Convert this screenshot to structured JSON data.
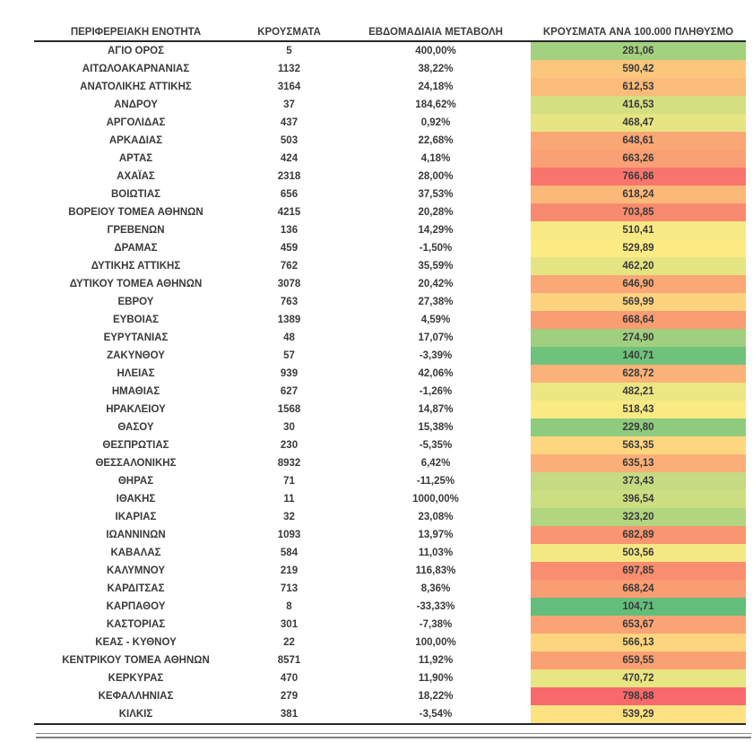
{
  "chart_data": {
    "type": "table",
    "columns": [
      "ΠΕΡΙΦΕΡΕΙΑΚΗ ΕΝΟΤΗΤΑ",
      "ΚΡΟΥΣΜΑΤΑ",
      "ΕΒΔΟΜΑΔΙΑΙΑ ΜΕΤΑΒΟΛΗ",
      "ΚΡΟΥΣΜΑΤΑ ΑΝΑ 100.000 ΠΛΗΘΥΣΜΟ"
    ],
    "color_scale": {
      "low": "#63BE7B",
      "mid": "#FFEB84",
      "high": "#F8696B",
      "applies_to_column": "ΚΡΟΥΣΜΑΤΑ ΑΝΑ 100.000 ΠΛΗΘΥΣΜΟ"
    },
    "rows": [
      {
        "region": "ΑΓΙΟ ΟΡΟΣ",
        "cases": "5",
        "weekly_change": "400,00%",
        "per_100k": "281,06",
        "color": "#A3D17F"
      },
      {
        "region": "ΑΙΤΩΛΟΑΚΑΡΝΑΝΙΑΣ",
        "cases": "1132",
        "weekly_change": "38,22%",
        "per_100k": "590,42",
        "color": "#FCC77C"
      },
      {
        "region": "ΑΝΑΤΟΛΙΚΗΣ ΑΤΤΙΚΗΣ",
        "cases": "3164",
        "weekly_change": "24,18%",
        "per_100k": "612,53",
        "color": "#FBBB7A"
      },
      {
        "region": "ΑΝΔΡΟΥ",
        "cases": "37",
        "weekly_change": "184,62%",
        "per_100k": "416,53",
        "color": "#D4DF82"
      },
      {
        "region": "ΑΡΓΟΛΙΔΑΣ",
        "cases": "437",
        "weekly_change": "0,92%",
        "per_100k": "468,47",
        "color": "#E7E483"
      },
      {
        "region": "ΑΡΚΑΔΙΑΣ",
        "cases": "503",
        "weekly_change": "22,68%",
        "per_100k": "648,61",
        "color": "#FAA776"
      },
      {
        "region": "ΑΡΤΑΣ",
        "cases": "424",
        "weekly_change": "4,18%",
        "per_100k": "663,26",
        "color": "#F9A074"
      },
      {
        "region": "ΑΧΑΪΑΣ",
        "cases": "2318",
        "weekly_change": "28,00%",
        "per_100k": "766,86",
        "color": "#F8756D"
      },
      {
        "region": "ΒΟΙΩΤΙΑΣ",
        "cases": "656",
        "weekly_change": "37,53%",
        "per_100k": "618,24",
        "color": "#FBB879"
      },
      {
        "region": "ΒΟΡΕΙΟΥ ΤΟΜΕΑ ΑΘΗΝΩΝ",
        "cases": "4215",
        "weekly_change": "20,28%",
        "per_100k": "703,85",
        "color": "#F88A6F"
      },
      {
        "region": "ΓΡΕΒΕΝΩΝ",
        "cases": "136",
        "weekly_change": "14,29%",
        "per_100k": "510,41",
        "color": "#F7E984"
      },
      {
        "region": "ΔΡΑΜΑΣ",
        "cases": "459",
        "weekly_change": "-1,50%",
        "per_100k": "529,89",
        "color": "#FEEB84"
      },
      {
        "region": "ΔΥΤΙΚΗΣ ΑΤΤΙΚΗΣ",
        "cases": "762",
        "weekly_change": "35,59%",
        "per_100k": "462,20",
        "color": "#E5E483"
      },
      {
        "region": "ΔΥΤΙΚΟΥ ΤΟΜΕΑ ΑΘΗΝΩΝ",
        "cases": "3078",
        "weekly_change": "20,42%",
        "per_100k": "646,90",
        "color": "#FAA876"
      },
      {
        "region": "ΕΒΡΟΥ",
        "cases": "763",
        "weekly_change": "27,38%",
        "per_100k": "569,99",
        "color": "#FDD37F"
      },
      {
        "region": "ΕΥΒΟΙΑΣ",
        "cases": "1389",
        "weekly_change": "4,59%",
        "per_100k": "668,64",
        "color": "#F99D73"
      },
      {
        "region": "ΕΥΡΥΤΑΝΙΑΣ",
        "cases": "48",
        "weekly_change": "17,07%",
        "per_100k": "274,90",
        "color": "#A0D07F"
      },
      {
        "region": "ΖΑΚΥΝΘΟΥ",
        "cases": "57",
        "weekly_change": "-3,39%",
        "per_100k": "140,71",
        "color": "#6FC27C"
      },
      {
        "region": "ΗΛΕΙΑΣ",
        "cases": "939",
        "weekly_change": "42,06%",
        "per_100k": "628,72",
        "color": "#FBB278"
      },
      {
        "region": "ΗΜΑΘΙΑΣ",
        "cases": "627",
        "weekly_change": "-1,26%",
        "per_100k": "482,21",
        "color": "#ECE683"
      },
      {
        "region": "ΗΡΑΚΛΕΙΟΥ",
        "cases": "1568",
        "weekly_change": "14,87%",
        "per_100k": "518,43",
        "color": "#FAEA84"
      },
      {
        "region": "ΘΑΣΟΥ",
        "cases": "30",
        "weekly_change": "15,38%",
        "per_100k": "229,80",
        "color": "#8FCB7E"
      },
      {
        "region": "ΘΕΣΠΡΩΤΙΑΣ",
        "cases": "230",
        "weekly_change": "-5,35%",
        "per_100k": "563,35",
        "color": "#FDD67F"
      },
      {
        "region": "ΘΕΣΣΑΛΟΝΙΚΗΣ",
        "cases": "8932",
        "weekly_change": "6,42%",
        "per_100k": "635,13",
        "color": "#FAAF77"
      },
      {
        "region": "ΘΗΡΑΣ",
        "cases": "71",
        "weekly_change": "-11,25%",
        "per_100k": "373,43",
        "color": "#C5DA81"
      },
      {
        "region": "ΙΘΑΚΗΣ",
        "cases": "11",
        "weekly_change": "1000,00%",
        "per_100k": "396,54",
        "color": "#CDDD81"
      },
      {
        "region": "ΙΚΑΡΙΑΣ",
        "cases": "32",
        "weekly_change": "23,08%",
        "per_100k": "323,20",
        "color": "#B2D580"
      },
      {
        "region": "ΙΩΑΝΝΙΝΩΝ",
        "cases": "1093",
        "weekly_change": "13,97%",
        "per_100k": "682,89",
        "color": "#F99571"
      },
      {
        "region": "ΚΑΒΑΛΑΣ",
        "cases": "584",
        "weekly_change": "11,03%",
        "per_100k": "503,56",
        "color": "#F4E883"
      },
      {
        "region": "ΚΑΛΥΜΝΟΥ",
        "cases": "219",
        "weekly_change": "116,83%",
        "per_100k": "697,85",
        "color": "#F98D70"
      },
      {
        "region": "ΚΑΡΔΙΤΣΑΣ",
        "cases": "713",
        "weekly_change": "8,36%",
        "per_100k": "668,24",
        "color": "#F99D73"
      },
      {
        "region": "ΚΑΡΠΑΘΟΥ",
        "cases": "8",
        "weekly_change": "-33,33%",
        "per_100k": "104,71",
        "color": "#63BE7B"
      },
      {
        "region": "ΚΑΣΤΟΡΙΑΣ",
        "cases": "301",
        "weekly_change": "-7,38%",
        "per_100k": "653,67",
        "color": "#FAA475"
      },
      {
        "region": "ΚΕΑΣ - ΚΥΘΝΟΥ",
        "cases": "22",
        "weekly_change": "100,00%",
        "per_100k": "566,13",
        "color": "#FDD57F"
      },
      {
        "region": "ΚΕΝΤΡΙΚΟΥ ΤΟΜΕΑ ΑΘΗΝΩΝ",
        "cases": "8571",
        "weekly_change": "11,92%",
        "per_100k": "659,55",
        "color": "#FAA174"
      },
      {
        "region": "ΚΕΡΚΥΡΑΣ",
        "cases": "470",
        "weekly_change": "11,90%",
        "per_100k": "470,72",
        "color": "#E8E583"
      },
      {
        "region": "ΚΕΦΑΛΛΗΝΙΑΣ",
        "cases": "279",
        "weekly_change": "18,22%",
        "per_100k": "798,88",
        "color": "#F8696B"
      },
      {
        "region": "ΚΙΛΚΙΣ",
        "cases": "381",
        "weekly_change": "-3,54%",
        "per_100k": "539,29",
        "color": "#FEE282"
      }
    ]
  }
}
